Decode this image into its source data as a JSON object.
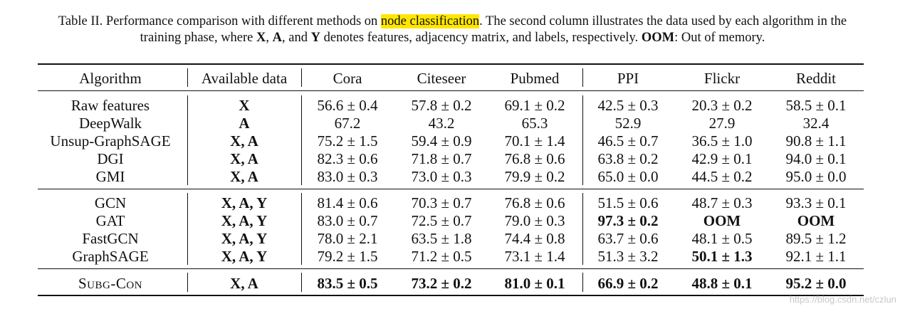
{
  "caption": {
    "line1_pre": "Table II. Performance comparison with different methods on ",
    "line1_highlight": "node classification",
    "line1_post": ". The second column illustrates the data used by each algorithm in the",
    "line2_pre": "training phase, where ",
    "line2_x": "X",
    "line2_sep1": ", ",
    "line2_a": "A",
    "line2_sep2": ", and ",
    "line2_y": "Y",
    "line2_mid": " denotes features, adjacency matrix, and labels, respectively. ",
    "line2_oom": "OOM",
    "line2_post": ": Out of memory."
  },
  "columns": [
    "Algorithm",
    "Available data",
    "Cora",
    "Citeseer",
    "Pubmed",
    "PPI",
    "Flickr",
    "Reddit"
  ],
  "rows": [
    {
      "algorithm": "Raw features",
      "data": "X",
      "cells": [
        "56.6 ± 0.4",
        "57.8 ± 0.2",
        "69.1 ± 0.2",
        "42.5 ± 0.3",
        "20.3 ± 0.2",
        "58.5 ± 0.1"
      ],
      "bold": []
    },
    {
      "algorithm": "DeepWalk",
      "data": "A",
      "cells": [
        "67.2",
        "43.2",
        "65.3",
        "52.9",
        "27.9",
        "32.4"
      ],
      "bold": []
    },
    {
      "algorithm": "Unsup-GraphSAGE",
      "data": "X, A",
      "cells": [
        "75.2 ± 1.5",
        "59.4 ± 0.9",
        "70.1 ± 1.4",
        "46.5 ± 0.7",
        "36.5 ± 1.0",
        "90.8 ± 1.1"
      ],
      "bold": []
    },
    {
      "algorithm": "DGI",
      "data": "X, A",
      "cells": [
        "82.3 ± 0.6",
        "71.8 ± 0.7",
        "76.8 ± 0.6",
        "63.8 ± 0.2",
        "42.9 ± 0.1",
        "94.0 ± 0.1"
      ],
      "bold": []
    },
    {
      "algorithm": "GMI",
      "data": "X, A",
      "cells": [
        "83.0 ± 0.3",
        "73.0 ± 0.3",
        "79.9 ± 0.2",
        "65.0 ± 0.0",
        "44.5 ± 0.2",
        "95.0 ± 0.0"
      ],
      "bold": []
    },
    {
      "algorithm": "GCN",
      "data": "X, A, Y",
      "cells": [
        "81.4 ± 0.6",
        "70.3 ± 0.7",
        "76.8 ± 0.6",
        "51.5 ± 0.6",
        "48.7 ± 0.3",
        "93.3 ± 0.1"
      ],
      "bold": []
    },
    {
      "algorithm": "GAT",
      "data": "X, A, Y",
      "cells": [
        "83.0 ± 0.7",
        "72.5 ± 0.7",
        "79.0 ± 0.3",
        "97.3 ± 0.2",
        "OOM",
        "OOM"
      ],
      "bold": [
        3,
        4,
        5
      ]
    },
    {
      "algorithm": "FastGCN",
      "data": "X, A, Y",
      "cells": [
        "78.0 ± 2.1",
        "63.5 ± 1.8",
        "74.4 ± 0.8",
        "63.7 ± 0.6",
        "48.1 ± 0.5",
        "89.5 ± 1.2"
      ],
      "bold": []
    },
    {
      "algorithm": "GraphSAGE",
      "data": "X, A, Y",
      "cells": [
        "79.2 ± 1.5",
        "71.2 ± 0.5",
        "73.1 ± 1.4",
        "51.3 ± 3.2",
        "50.1 ± 1.3",
        "92.1 ± 1.1"
      ],
      "bold": [
        4
      ]
    },
    {
      "algorithm": "Subg-Con",
      "data": "X, A",
      "cells": [
        "83.5 ± 0.5",
        "73.2 ± 0.2",
        "81.0 ± 0.1",
        "66.9 ± 0.2",
        "48.8 ± 0.1",
        "95.2 ± 0.0"
      ],
      "bold": [
        0,
        1,
        2,
        3,
        4,
        5
      ],
      "smallcaps": true
    }
  ],
  "watermark": "https://blog.csdn.net/czlun"
}
